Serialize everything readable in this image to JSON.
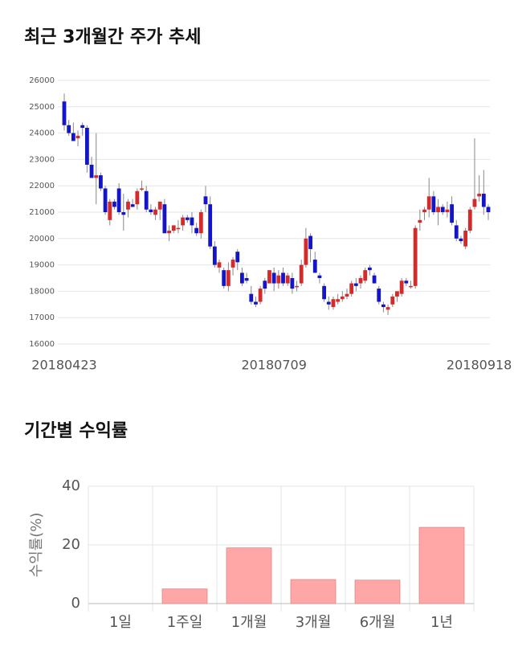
{
  "chart_data": [
    {
      "type": "candlestick",
      "title": "최근 3개월간 주가 추세",
      "categories": [
        "20180423",
        null,
        null,
        null,
        null,
        null,
        null,
        null,
        null,
        null,
        null,
        null,
        null,
        null,
        null,
        null,
        null,
        null,
        null,
        null,
        null,
        null,
        null,
        null,
        null,
        null,
        null,
        null,
        null,
        null,
        null,
        null,
        null,
        null,
        null,
        null,
        null,
        null,
        null,
        null,
        null,
        null,
        null,
        null,
        null,
        null,
        "20180709",
        null,
        null,
        null,
        null,
        null,
        null,
        null,
        null,
        null,
        null,
        null,
        null,
        null,
        null,
        null,
        null,
        null,
        null,
        null,
        null,
        null,
        null,
        null,
        null,
        null,
        null,
        null,
        null,
        null,
        null,
        null,
        null,
        null,
        null,
        null,
        null,
        null,
        null,
        null,
        null,
        null,
        null,
        null,
        null,
        "20180918",
        null,
        null
      ],
      "open": [
        25200,
        24300,
        24000,
        23800,
        24300,
        24200,
        22800,
        22300,
        22400,
        21900,
        20700,
        21400,
        21900,
        21000,
        21100,
        21300,
        21300,
        21900,
        21800,
        21100,
        20900,
        21100,
        21300,
        20200,
        20300,
        20400,
        20500,
        20800,
        20800,
        20400,
        20200,
        21600,
        21300,
        19700,
        18900,
        18800,
        18200,
        18900,
        19500,
        18700,
        18500,
        17900,
        17600,
        17600,
        18400,
        18300,
        18700,
        18300,
        18700,
        18300,
        18500,
        18200,
        18300,
        19000,
        20100,
        19200,
        18600,
        18200,
        17600,
        17400,
        17600,
        17700,
        17800,
        17900,
        18300,
        18300,
        18400,
        18900,
        18600,
        18100,
        17500,
        17300,
        17500,
        17800,
        17900,
        18400,
        18200,
        18200,
        20600,
        21000,
        21100,
        21600,
        21000,
        21200,
        21000,
        21300,
        20500,
        20000,
        19700,
        20300,
        21200,
        21600,
        21700,
        21200
      ],
      "high": [
        25500,
        24500,
        24400,
        24100,
        24400,
        24300,
        23100,
        24000,
        22500,
        22000,
        21500,
        21500,
        22100,
        21700,
        21500,
        21500,
        21900,
        22200,
        22000,
        21300,
        21200,
        21400,
        21500,
        20500,
        20500,
        20700,
        20900,
        20900,
        21000,
        20600,
        21100,
        22000,
        21600,
        19900,
        19200,
        18900,
        19100,
        19300,
        19600,
        18900,
        18700,
        18200,
        17800,
        18200,
        18500,
        18800,
        18900,
        18800,
        18900,
        18700,
        18700,
        18400,
        19200,
        20400,
        20200,
        19500,
        18700,
        18300,
        17800,
        17800,
        17900,
        18000,
        18100,
        18400,
        18500,
        18600,
        18900,
        19000,
        18700,
        18200,
        17600,
        17500,
        17900,
        18000,
        18500,
        18500,
        18400,
        20500,
        21100,
        21200,
        22300,
        21800,
        21500,
        21300,
        21400,
        21600,
        20700,
        20100,
        20400,
        21200,
        23800,
        22400,
        22600,
        21300
      ],
      "low": [
        24100,
        23900,
        23700,
        23500,
        23900,
        22500,
        22300,
        21300,
        21800,
        20900,
        20500,
        21100,
        20900,
        20300,
        20800,
        21200,
        21100,
        21800,
        21000,
        20900,
        20700,
        20700,
        20200,
        19900,
        20200,
        20200,
        20300,
        20600,
        20200,
        20100,
        20000,
        21000,
        19600,
        18900,
        18700,
        18100,
        18000,
        18600,
        18800,
        18200,
        18300,
        17500,
        17400,
        17500,
        17900,
        18300,
        18000,
        18100,
        18200,
        18200,
        17900,
        18000,
        18200,
        18900,
        19100,
        18700,
        18300,
        17600,
        17300,
        17300,
        17500,
        17600,
        17700,
        17800,
        18000,
        18100,
        18300,
        18600,
        18300,
        17500,
        17200,
        17100,
        17400,
        17600,
        17800,
        18200,
        18100,
        18100,
        20300,
        20700,
        20800,
        20900,
        20500,
        20900,
        20800,
        20500,
        19900,
        19800,
        19600,
        20200,
        21100,
        21400,
        20900,
        20700
      ],
      "close": [
        24300,
        24000,
        23700,
        23900,
        24200,
        22800,
        22300,
        22400,
        21900,
        21000,
        21400,
        21200,
        21000,
        20900,
        21400,
        21200,
        21800,
        21900,
        21100,
        21000,
        21100,
        21400,
        20200,
        20300,
        20500,
        20400,
        20800,
        20700,
        20500,
        20200,
        21000,
        21300,
        19700,
        19000,
        19100,
        18200,
        18800,
        19200,
        19100,
        18300,
        18400,
        17600,
        17500,
        18100,
        18100,
        18800,
        18300,
        18600,
        18300,
        18600,
        18100,
        18200,
        19000,
        20000,
        19600,
        18700,
        18500,
        17700,
        17500,
        17700,
        17700,
        17800,
        17900,
        18300,
        18200,
        18500,
        18800,
        18800,
        18300,
        17600,
        17400,
        17400,
        17800,
        18000,
        18400,
        18300,
        18200,
        20400,
        20700,
        21100,
        21600,
        21000,
        21200,
        21000,
        21100,
        20600,
        20000,
        19900,
        20300,
        21100,
        21500,
        21700,
        21200,
        21000
      ],
      "up_color": "#d42a2a",
      "down_color": "#1414c8",
      "ylim": [
        16000,
        26000
      ],
      "yticks": [
        16000,
        17000,
        18000,
        19000,
        20000,
        21000,
        22000,
        23000,
        24000,
        25000,
        26000
      ],
      "grid": true
    },
    {
      "type": "bar",
      "title": "기간별 수익률",
      "y_label": "수익률(%)",
      "categories": [
        "1일",
        "1주일",
        "1개월",
        "3개월",
        "6개월",
        "1년"
      ],
      "values": [
        0,
        5,
        19,
        8.2,
        8,
        26
      ],
      "color": "#ffa6a6",
      "ylim": [
        0,
        40
      ],
      "yticks": [
        0,
        20,
        40
      ],
      "grid": true
    }
  ]
}
